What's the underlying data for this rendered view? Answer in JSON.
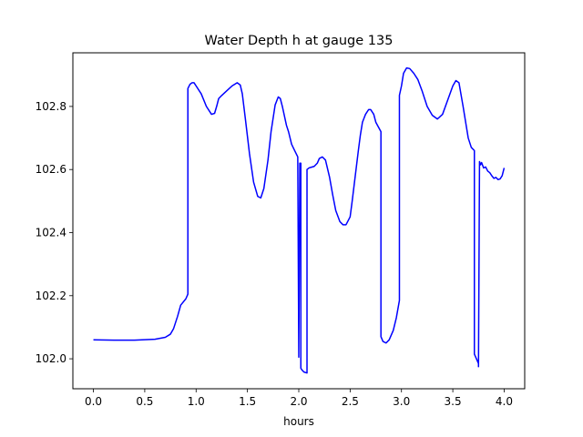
{
  "chart_data": {
    "type": "line",
    "title": "Water Depth h at gauge 135",
    "xlabel": "hours",
    "ylabel": "",
    "xlim": [
      -0.2,
      4.2
    ],
    "ylim": [
      101.905,
      102.97
    ],
    "x_ticks": [
      0.0,
      0.5,
      1.0,
      1.5,
      2.0,
      2.5,
      3.0,
      3.5,
      4.0
    ],
    "x_tick_labels": [
      "0.0",
      "0.5",
      "1.0",
      "1.5",
      "2.0",
      "2.5",
      "3.0",
      "3.5",
      "4.0"
    ],
    "y_ticks": [
      102.0,
      102.2,
      102.4,
      102.6,
      102.8
    ],
    "y_tick_labels": [
      "102.0",
      "102.2",
      "102.4",
      "102.6",
      "102.8"
    ],
    "grid": false,
    "series": [
      {
        "color": "#0000ff",
        "x": [
          0.0,
          0.2,
          0.4,
          0.6,
          0.7,
          0.75,
          0.78,
          0.82,
          0.85,
          0.9,
          0.92,
          0.92,
          0.94,
          0.96,
          0.98,
          1.0,
          1.05,
          1.1,
          1.15,
          1.18,
          1.2,
          1.22,
          1.25,
          1.3,
          1.35,
          1.4,
          1.43,
          1.45,
          1.48,
          1.52,
          1.56,
          1.6,
          1.63,
          1.66,
          1.7,
          1.73,
          1.77,
          1.8,
          1.82,
          1.84,
          1.86,
          1.88,
          1.9,
          1.93,
          1.96,
          1.99,
          2.0,
          2.01,
          2.01,
          2.02,
          2.02,
          2.03,
          2.05,
          2.08,
          2.08,
          2.1,
          2.12,
          2.15,
          2.18,
          2.2,
          2.23,
          2.26,
          2.3,
          2.33,
          2.36,
          2.4,
          2.43,
          2.46,
          2.5,
          2.52,
          2.55,
          2.58,
          2.6,
          2.62,
          2.65,
          2.68,
          2.7,
          2.73,
          2.75,
          2.8,
          2.8,
          2.82,
          2.85,
          2.88,
          2.92,
          2.95,
          2.98,
          2.98,
          3.0,
          3.02,
          3.05,
          3.08,
          3.12,
          3.16,
          3.2,
          3.25,
          3.3,
          3.35,
          3.4,
          3.45,
          3.5,
          3.53,
          3.56,
          3.6,
          3.65,
          3.68,
          3.71,
          3.71,
          3.75,
          3.75,
          3.76,
          3.77,
          3.78,
          3.8,
          3.82,
          3.84,
          3.86,
          3.88,
          3.9,
          3.92,
          3.94,
          3.96,
          3.98,
          4.0
        ],
        "y": [
          102.06,
          102.059,
          102.059,
          102.062,
          102.068,
          102.078,
          102.095,
          102.135,
          102.17,
          102.19,
          102.205,
          102.857,
          102.87,
          102.875,
          102.875,
          102.865,
          102.84,
          102.8,
          102.775,
          102.778,
          102.8,
          102.825,
          102.835,
          102.85,
          102.865,
          102.875,
          102.868,
          102.84,
          102.76,
          102.65,
          102.56,
          102.515,
          102.51,
          102.54,
          102.63,
          102.72,
          102.805,
          102.83,
          102.825,
          102.8,
          102.77,
          102.74,
          102.72,
          102.68,
          102.66,
          102.64,
          102.005,
          102.62,
          102.62,
          102.62,
          101.97,
          101.965,
          101.958,
          101.955,
          102.6,
          102.605,
          102.607,
          102.61,
          102.62,
          102.635,
          102.64,
          102.63,
          102.575,
          102.52,
          102.47,
          102.435,
          102.425,
          102.425,
          102.45,
          102.5,
          102.58,
          102.66,
          102.71,
          102.75,
          102.775,
          102.79,
          102.79,
          102.775,
          102.75,
          102.72,
          102.07,
          102.055,
          102.05,
          102.06,
          102.09,
          102.13,
          102.185,
          102.835,
          102.865,
          102.905,
          102.922,
          102.92,
          102.905,
          102.885,
          102.85,
          102.8,
          102.772,
          102.76,
          102.775,
          102.82,
          102.865,
          102.882,
          102.875,
          102.8,
          102.7,
          102.67,
          102.66,
          102.015,
          101.985,
          101.975,
          102.625,
          102.615,
          102.622,
          102.605,
          102.608,
          102.595,
          102.59,
          102.58,
          102.572,
          102.575,
          102.568,
          102.57,
          102.58,
          102.605
        ]
      }
    ]
  }
}
